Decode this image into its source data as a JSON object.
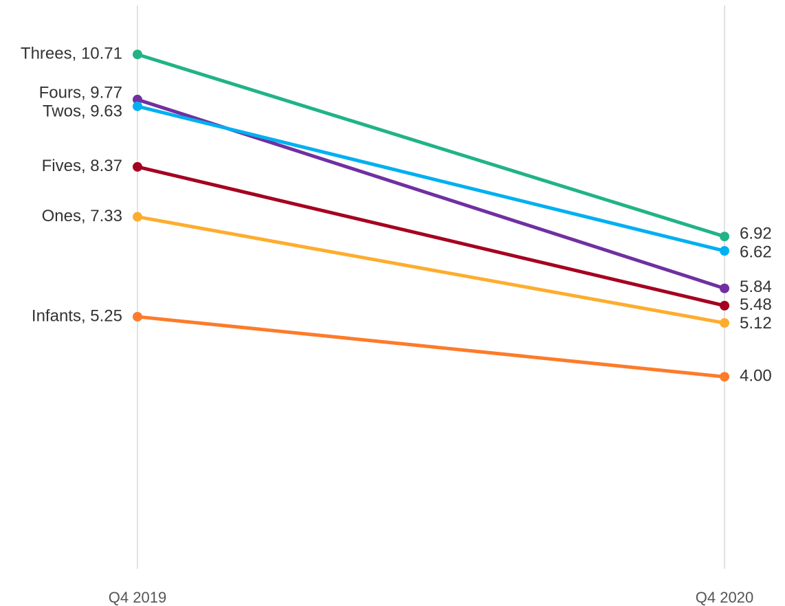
{
  "chart_data": {
    "type": "slope",
    "categories": [
      "Q4 2019",
      "Q4 2020"
    ],
    "ylim": [
      0,
      11.7
    ],
    "series": [
      {
        "name": "Threes",
        "color": "#21b387",
        "values": [
          10.71,
          6.92
        ],
        "value_labels": [
          "Threes, 10.71",
          "6.92"
        ]
      },
      {
        "name": "Fours",
        "color": "#7030a0",
        "values": [
          9.77,
          5.84
        ],
        "value_labels": [
          "Fours, 9.77",
          "5.84"
        ]
      },
      {
        "name": "Twos",
        "color": "#00b0f0",
        "values": [
          9.63,
          6.62
        ],
        "value_labels": [
          "Twos, 9.63",
          "6.62"
        ]
      },
      {
        "name": "Fives",
        "color": "#a50021",
        "values": [
          8.37,
          5.48
        ],
        "value_labels": [
          "Fives, 8.37",
          "5.48"
        ]
      },
      {
        "name": "Ones",
        "color": "#fdad2e",
        "values": [
          7.33,
          5.12
        ],
        "value_labels": [
          "Ones, 7.33",
          "5.12"
        ]
      },
      {
        "name": "Infants",
        "color": "#fd7b2a",
        "values": [
          5.25,
          4.0
        ],
        "value_labels": [
          "Infants, 5.25",
          "4.00"
        ]
      }
    ]
  }
}
